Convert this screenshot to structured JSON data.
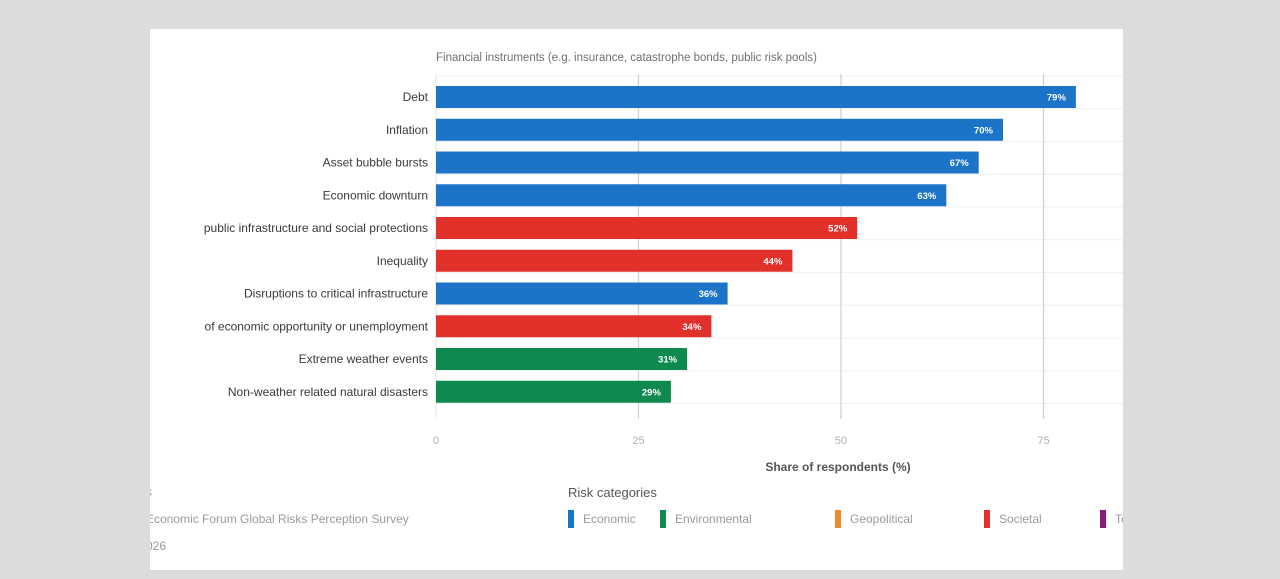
{
  "chart_data": {
    "type": "bar",
    "orientation": "horizontal",
    "subtitle": "Financial instruments (e.g. insurance, catastrophe bonds, public risk pools)",
    "categories": [
      "Debt",
      "Inflation",
      "Asset bubble bursts",
      "Economic downturn",
      "public infrastructure and social protections",
      "Inequality",
      "Disruptions to critical infrastructure",
      "of economic opportunity or unemployment",
      "Extreme weather events",
      "Non-weather related natural disasters"
    ],
    "values": [
      79,
      70,
      67,
      63,
      52,
      44,
      36,
      34,
      31,
      29
    ],
    "value_labels": [
      "79%",
      "70%",
      "67%",
      "63%",
      "52%",
      "44%",
      "36%",
      "34%",
      "31%",
      "29%"
    ],
    "bar_categories": [
      "Economic",
      "Economic",
      "Economic",
      "Economic",
      "Societal",
      "Societal",
      "Economic",
      "Societal",
      "Environmental",
      "Environmental"
    ],
    "xlabel": "Share of respondents (%)",
    "xticks": [
      "0",
      "25",
      "50",
      "75"
    ],
    "xlim": [
      0,
      85
    ],
    "grid": true,
    "legend": {
      "title": "Risk categories",
      "items": [
        {
          "name": "Economic",
          "color": "#1c74c9"
        },
        {
          "name": "Environmental",
          "color": "#0f8a4f"
        },
        {
          "name": "Geopolitical",
          "color": "#ef8a2c"
        },
        {
          "name": "Societal",
          "color": "#e2302a"
        },
        {
          "name": "Te",
          "color": "#8b1a78"
        }
      ],
      "placement": "bottom"
    },
    "colors": {
      "Economic": "#1c74c9",
      "Environmental": "#0f8a4f",
      "Geopolitical": "#ef8a2c",
      "Societal": "#e2302a",
      "Technological": "#8b1a78"
    }
  },
  "footer": {
    "source_fragment": "s",
    "source_text": "Economic Forum Global Risks Perception Survey",
    "year_fragment": "026"
  }
}
